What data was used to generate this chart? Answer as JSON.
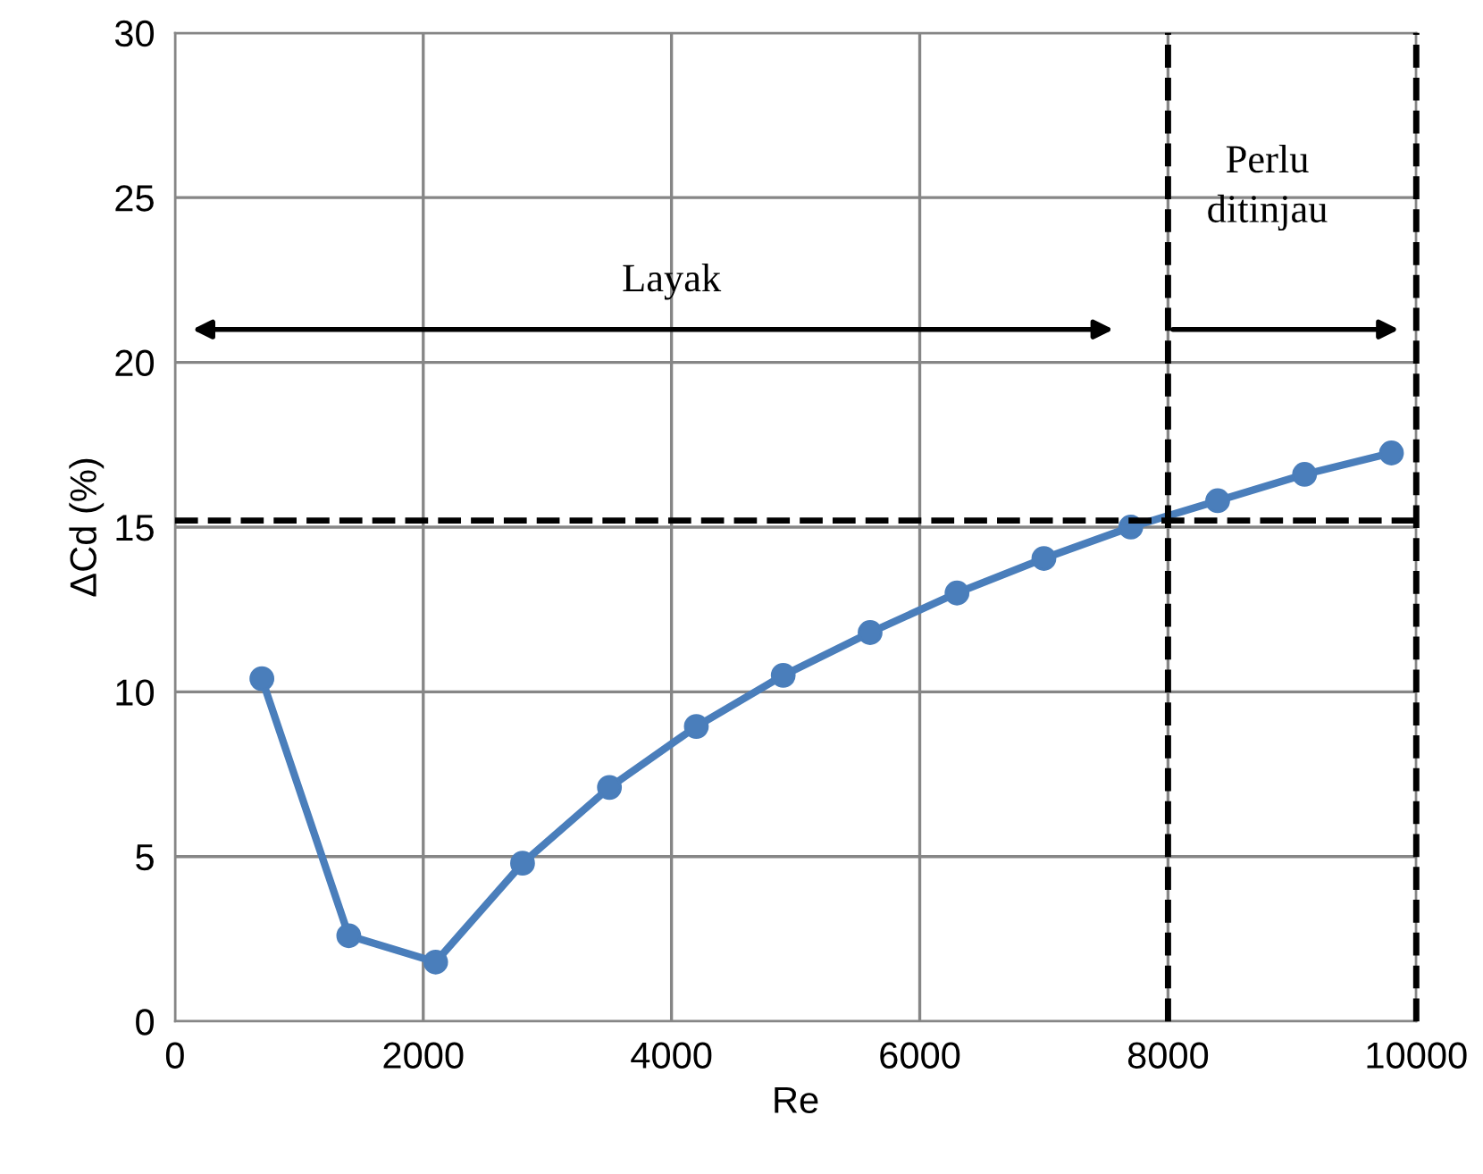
{
  "chart_data": {
    "type": "line",
    "xlabel": "Re",
    "ylabel": "ΔCd (%)",
    "x": [
      700,
      1400,
      2100,
      2800,
      3500,
      4200,
      4900,
      5600,
      6300,
      7000,
      7700,
      8400,
      9100,
      9800
    ],
    "series": [
      {
        "color": "#4a7ebb",
        "values": [
          10.4,
          2.6,
          1.8,
          4.8,
          7.1,
          8.95,
          10.5,
          11.8,
          13.0,
          14.05,
          15.0,
          15.8,
          16.6,
          17.25
        ]
      }
    ],
    "xlim": [
      0,
      10000
    ],
    "xticks": [
      0,
      2000,
      4000,
      6000,
      8000,
      10000
    ],
    "ylim": [
      0,
      30
    ],
    "yticks": [
      0,
      5,
      10,
      15,
      20,
      25,
      30
    ],
    "grid": true,
    "marker": "circle",
    "line_style": "solid",
    "ref_lines": [
      {
        "axis": "y",
        "value": 15.2,
        "color": "#000000",
        "line_style": "dashed"
      },
      {
        "axis": "x",
        "value": 8000,
        "color": "#000000",
        "line_style": "dashed"
      },
      {
        "axis": "x",
        "value": 10000,
        "color": "#000000",
        "line_style": "dashed"
      }
    ],
    "annotations": [
      "Layak",
      "Perlu\nditinjau"
    ]
  }
}
